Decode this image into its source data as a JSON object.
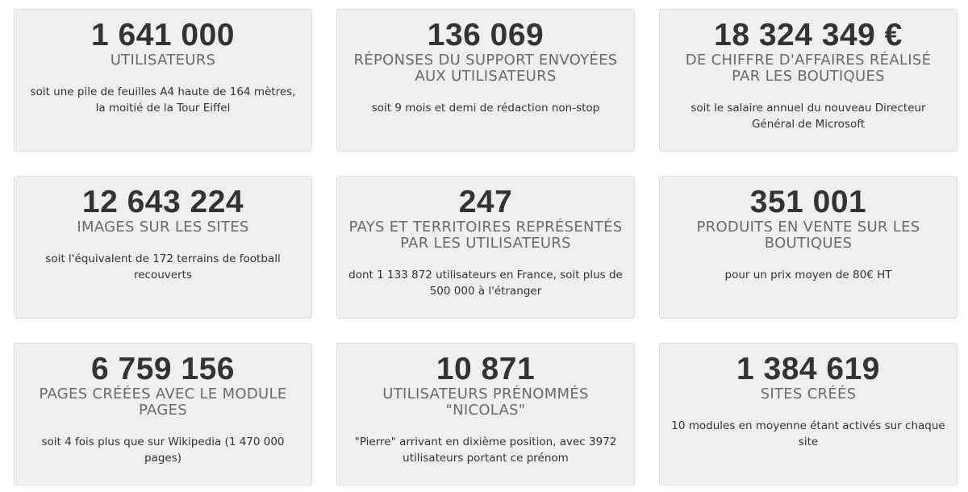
{
  "stats": [
    {
      "number": "1 641 000",
      "label": "UTILISATEURS",
      "description": "soit une pile de feuilles A4 haute de 164 mètres, la moitié de la Tour Eiffel"
    },
    {
      "number": "136 069",
      "label": "RÉPONSES DU SUPPORT ENVOYÉES AUX UTILISATEURS",
      "description": "soit 9 mois et demi de rédaction non-stop"
    },
    {
      "number": "18 324 349 €",
      "label": "DE CHIFFRE D'AFFAIRES RÉALISÉ PAR LES BOUTIQUES",
      "description": "soit le salaire annuel du nouveau Directeur Général de Microsoft"
    },
    {
      "number": "12 643 224",
      "label": "IMAGES SUR LES SITES",
      "description": "soit l'équivalent de 172 terrains de football recouverts"
    },
    {
      "number": "247",
      "label": "PAYS ET TERRITOIRES REPRÉSENTÉS PAR LES UTILISATEURS",
      "description": "dont 1 133 872 utilisateurs en France, soit plus de 500 000 à l'étranger"
    },
    {
      "number": "351 001",
      "label": "PRODUITS EN VENTE SUR LES BOUTIQUES",
      "description": "pour un prix moyen de 80€ HT"
    },
    {
      "number": "6 759 156",
      "label": "PAGES CRÉÉES AVEC LE MODULE PAGES",
      "description": "soit 4 fois plus que sur Wikipedia (1 470 000 pages)"
    },
    {
      "number": "10 871",
      "label": "UTILISATEURS PRÉNOMMÉS \"NICOLAS\"",
      "description": "\"Pierre\" arrivant en dixième position, avec 3972 utilisateurs portant ce prénom"
    },
    {
      "number": "1 384 619",
      "label": "SITES CRÉÉS",
      "description": "10 modules en moyenne étant activés sur chaque site"
    }
  ]
}
